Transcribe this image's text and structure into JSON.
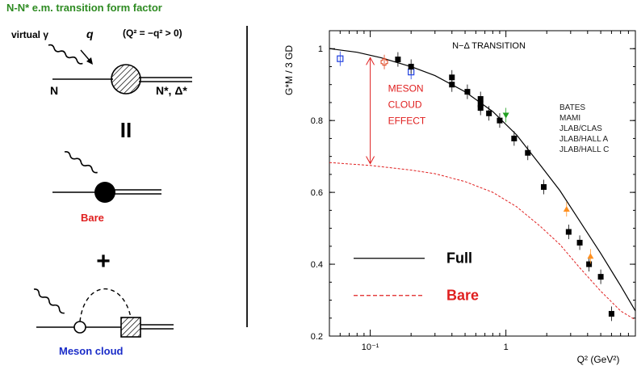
{
  "diagram": {
    "title": "N-N* e.m. transition form factor",
    "virtual_photon": "virtual γ",
    "q_label": "q",
    "q2_condition": "(Q² = −q² > 0)",
    "nucleon": "N",
    "resonance": "N*, Δ*",
    "equals": "II",
    "bare": "Bare",
    "plus": "+",
    "meson_cloud": "Meson cloud",
    "colors": {
      "title": "#2e8b22",
      "bare": "#e02020",
      "meson_cloud": "#1a2cc8"
    }
  },
  "chart_data": {
    "type": "scatter",
    "title": "N−Δ TRANSITION",
    "ylabel": "G*M / 3 GD",
    "xlabel": "Q² (GeV²)",
    "xscale": "log",
    "xlim": [
      0.05,
      9
    ],
    "ylim": [
      0.2,
      1.05
    ],
    "yticks": [
      0.2,
      0.4,
      0.6,
      0.8,
      1
    ],
    "ytick_labels": [
      "0.2",
      "0.4",
      "0.6",
      "0.8",
      "1"
    ],
    "xticks": [
      0.1,
      1
    ],
    "xtick_labels": [
      "10⁻¹",
      "1"
    ],
    "annotation": [
      "MESON",
      "CLOUD",
      "EFFECT"
    ],
    "grid": false,
    "legend_position": "top-right",
    "series": [
      {
        "name": "BATES",
        "marker": "open-cross",
        "color": "#e0401a",
        "points": [
          [
            0.127,
            0.963
          ]
        ]
      },
      {
        "name": "MAMI",
        "marker": "open-square",
        "color": "#2040e0",
        "points": [
          [
            0.06,
            0.972
          ],
          [
            0.2,
            0.935
          ]
        ]
      },
      {
        "name": "JLAB/CLAS",
        "marker": "filled-square",
        "color": "#000000",
        "points": [
          [
            0.16,
            0.97
          ],
          [
            0.2,
            0.95
          ],
          [
            0.4,
            0.92
          ],
          [
            0.4,
            0.9
          ],
          [
            0.52,
            0.88
          ],
          [
            0.65,
            0.86
          ],
          [
            0.65,
            0.845
          ],
          [
            0.65,
            0.835
          ],
          [
            0.75,
            0.82
          ],
          [
            0.9,
            0.8
          ],
          [
            1.15,
            0.75
          ],
          [
            1.45,
            0.71
          ],
          [
            1.9,
            0.615
          ],
          [
            2.9,
            0.49
          ],
          [
            3.5,
            0.46
          ],
          [
            4.1,
            0.4
          ],
          [
            5.0,
            0.365
          ],
          [
            6.0,
            0.262
          ]
        ]
      },
      {
        "name": "JLAB/HALL A",
        "marker": "down-triangle",
        "color": "#20a020",
        "points": [
          [
            1.0,
            0.815
          ]
        ]
      },
      {
        "name": "JLAB/HALL C",
        "marker": "up-triangle",
        "color": "#ff9020",
        "points": [
          [
            2.8,
            0.553
          ],
          [
            4.2,
            0.422
          ]
        ]
      }
    ],
    "curves": [
      {
        "name": "Full",
        "style": "solid",
        "color": "#000000",
        "x": [
          0.05,
          0.08,
          0.12,
          0.2,
          0.3,
          0.5,
          0.8,
          1.2,
          1.8,
          2.5,
          3.5,
          5,
          7,
          9
        ],
        "y": [
          1.0,
          0.99,
          0.975,
          0.95,
          0.925,
          0.88,
          0.825,
          0.76,
          0.675,
          0.605,
          0.52,
          0.43,
          0.34,
          0.27
        ]
      },
      {
        "name": "Bare",
        "style": "dashed",
        "color": "#e02020",
        "x": [
          0.05,
          0.1,
          0.2,
          0.3,
          0.5,
          0.8,
          1.2,
          1.8,
          2.5,
          3.5,
          5,
          7,
          9
        ],
        "y": [
          0.683,
          0.675,
          0.662,
          0.652,
          0.63,
          0.6,
          0.56,
          0.505,
          0.455,
          0.39,
          0.325,
          0.27,
          0.245
        ]
      }
    ],
    "inset_legend": [
      {
        "label": "Full",
        "style": "solid",
        "color": "#000000"
      },
      {
        "label": "Bare",
        "style": "dashed",
        "color": "#e02020"
      }
    ]
  }
}
